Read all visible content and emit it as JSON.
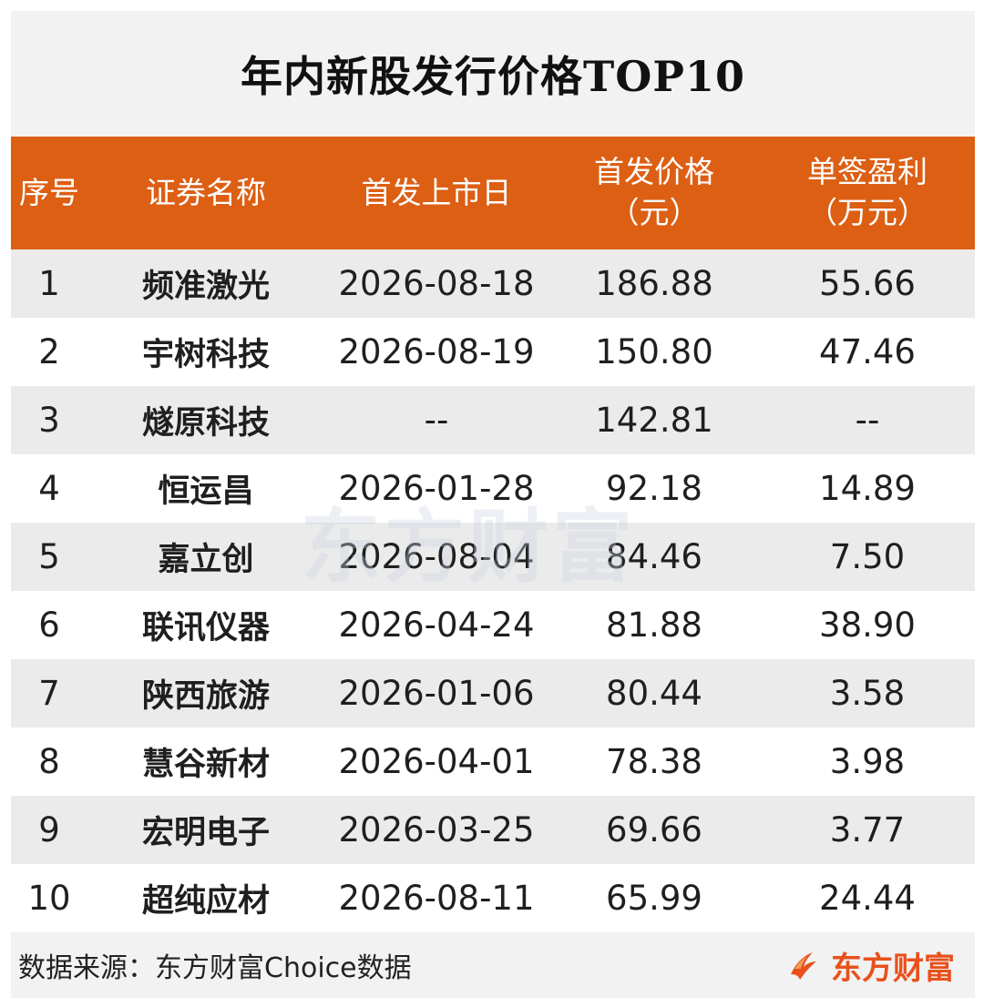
{
  "title": "年内新股发行价格TOP10",
  "header": {
    "index": "序号",
    "name": "证券名称",
    "date": "首发上市日",
    "price_line1": "首发价格",
    "price_line2": "（元）",
    "profit_line1": "单签盈利",
    "profit_line2": "（万元）"
  },
  "rows": [
    {
      "index": "1",
      "name": "频准激光",
      "date": "2026-08-18",
      "price": "186.88",
      "profit": "55.66"
    },
    {
      "index": "2",
      "name": "宇树科技",
      "date": "2026-08-19",
      "price": "150.80",
      "profit": "47.46"
    },
    {
      "index": "3",
      "name": "燧原科技",
      "date": "--",
      "price": "142.81",
      "profit": "--"
    },
    {
      "index": "4",
      "name": "恒运昌",
      "date": "2026-01-28",
      "price": "92.18",
      "profit": "14.89"
    },
    {
      "index": "5",
      "name": "嘉立创",
      "date": "2026-08-04",
      "price": "84.46",
      "profit": "7.50"
    },
    {
      "index": "6",
      "name": "联讯仪器",
      "date": "2026-04-24",
      "price": "81.88",
      "profit": "38.90"
    },
    {
      "index": "7",
      "name": "陕西旅游",
      "date": "2026-01-06",
      "price": "80.44",
      "profit": "3.58"
    },
    {
      "index": "8",
      "name": "慧谷新材",
      "date": "2026-04-01",
      "price": "78.38",
      "profit": "3.98"
    },
    {
      "index": "9",
      "name": "宏明电子",
      "date": "2026-03-25",
      "price": "69.66",
      "profit": "3.77"
    },
    {
      "index": "10",
      "name": "超纯应材",
      "date": "2026-08-11",
      "price": "65.99",
      "profit": "24.44"
    }
  ],
  "footer": {
    "source": "数据来源：东方财富Choice数据",
    "logo_text": "东方财富"
  },
  "watermark": "东方财富",
  "colors": {
    "header_bg": "#dc5f14",
    "logo": "#e8511c"
  },
  "icons": {
    "logo_mark": "flame-logo-icon"
  }
}
